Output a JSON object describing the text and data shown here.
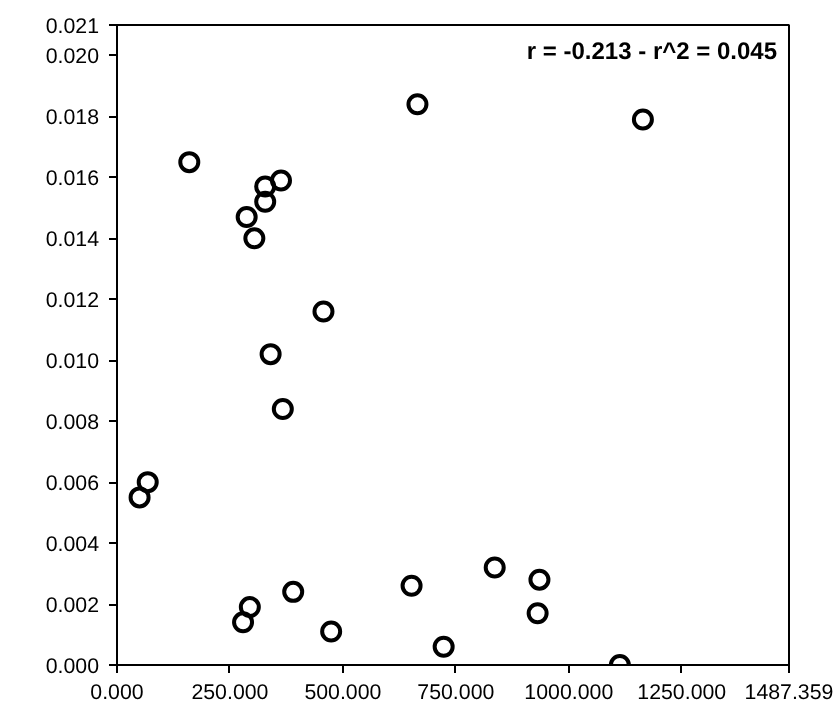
{
  "chart_data": {
    "type": "scatter",
    "marker": "circle",
    "grid": false,
    "annotations": [
      "r = -0.213 - r^2 = 0.045"
    ],
    "xlim": [
      0,
      1487.359
    ],
    "ylim": [
      0,
      0.021
    ],
    "xticks": [
      {
        "value": 0,
        "label": "0.000"
      },
      {
        "value": 250,
        "label": "250.000"
      },
      {
        "value": 500,
        "label": "500.000"
      },
      {
        "value": 750,
        "label": "750.000"
      },
      {
        "value": 1000,
        "label": "1000.000"
      },
      {
        "value": 1250,
        "label": "1250.000"
      },
      {
        "value": 1487.359,
        "label": "1487.359"
      }
    ],
    "yticks": [
      {
        "value": 0,
        "label": "0.000"
      },
      {
        "value": 0.002,
        "label": "0.002"
      },
      {
        "value": 0.004,
        "label": "0.004"
      },
      {
        "value": 0.006,
        "label": "0.006"
      },
      {
        "value": 0.008,
        "label": "0.008"
      },
      {
        "value": 0.01,
        "label": "0.010"
      },
      {
        "value": 0.012,
        "label": "0.012"
      },
      {
        "value": 0.014,
        "label": "0.014"
      },
      {
        "value": 0.016,
        "label": "0.016"
      },
      {
        "value": 0.018,
        "label": "0.018"
      },
      {
        "value": 0.02,
        "label": "0.020"
      },
      {
        "value": 0.021,
        "label": "0.021"
      }
    ],
    "series": [
      {
        "color": "#000000",
        "x": [
          160,
          665,
          1164,
          328,
          363,
          328,
          287,
          304,
          457,
          340,
          367,
          68,
          50,
          279,
          294,
          390,
          474,
          652,
          723,
          836,
          935,
          931,
          1113
        ],
        "values": [
          0.0165,
          0.0184,
          0.0179,
          0.0157,
          0.0159,
          0.0152,
          0.0147,
          0.014,
          0.0116,
          0.0102,
          0.0084,
          0.006,
          0.0055,
          0.0014,
          0.0019,
          0.0024,
          0.0011,
          0.0026,
          0.0006,
          0.0032,
          0.0028,
          0.0017,
          0.0
        ]
      }
    ]
  }
}
